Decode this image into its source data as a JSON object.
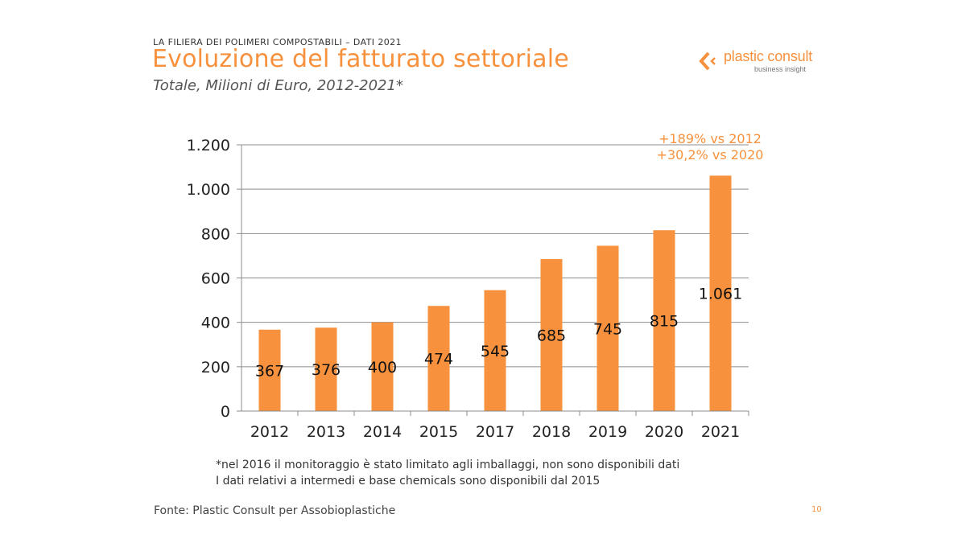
{
  "header": {
    "supertitle": "LA FILIERA DEI POLIMERI COMPOSTABILI – DATI 2021",
    "title": "Evoluzione del fatturato settoriale",
    "subtitle": "Totale, Milioni di Euro, 2012-2021*"
  },
  "logo": {
    "name": "plastic consult",
    "tagline": "business insight",
    "icon": "chevron-left-icon"
  },
  "colors": {
    "accent": "#f7913d",
    "bar": "#f7913d",
    "grid": "#8c8c8c",
    "text": "#222222"
  },
  "chart_data": {
    "type": "bar",
    "categories": [
      "2012",
      "2013",
      "2014",
      "2015",
      "2017",
      "2018",
      "2019",
      "2020",
      "2021"
    ],
    "values": [
      367,
      376,
      400,
      474,
      545,
      685,
      745,
      815,
      1061
    ],
    "data_labels": [
      "367",
      "376",
      "400",
      "474",
      "545",
      "685",
      "745",
      "815",
      "1.061"
    ],
    "ylim": [
      0,
      1200
    ],
    "yticks": [
      0,
      200,
      400,
      600,
      800,
      1000,
      1200
    ],
    "ytick_labels": [
      "0",
      "200",
      "400",
      "600",
      "800",
      "1.000",
      "1.200"
    ],
    "grid": true,
    "annotations": [
      "+189% vs 2012",
      "+30,2% vs 2020"
    ]
  },
  "footnotes": [
    "*nel 2016 il monitoraggio è stato limitato agli imballaggi, non sono disponibili dati",
    "I dati relativi a intermedi e base chemicals sono disponibili dal 2015"
  ],
  "source": "Fonte: Plastic Consult per Assobioplastiche",
  "page_number": "10"
}
